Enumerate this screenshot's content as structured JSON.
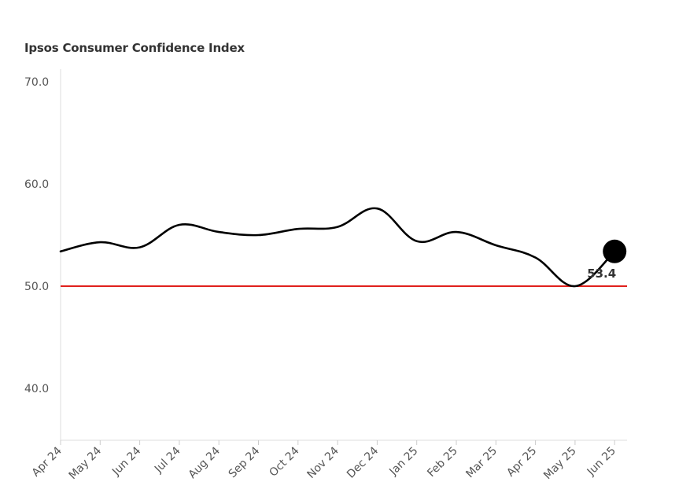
{
  "chart_data": {
    "type": "line",
    "title": "Ipsos Consumer Confidence Index",
    "xlabel": "",
    "ylabel": "",
    "x": [
      "Apr 24",
      "May 24",
      "Jun 24",
      "Jul 24",
      "Aug 24",
      "Sep 24",
      "Oct 24",
      "Nov 24",
      "Dec 24",
      "Jan 25",
      "Feb 25",
      "Mar 25",
      "Apr 25",
      "May 25",
      "Jun 25"
    ],
    "series": [
      {
        "values": [
          53.4,
          54.3,
          53.8,
          56.0,
          55.3,
          55.0,
          55.6,
          55.8,
          57.6,
          54.4,
          55.3,
          54.0,
          52.8,
          50.0,
          53.4
        ]
      }
    ],
    "y_ticks": [
      "70.0",
      "60.0",
      "50.0",
      "40.0"
    ],
    "ylim": [
      35,
      71
    ],
    "reference_line": {
      "value": 50.0,
      "color": "#e0201c"
    },
    "end_label": "53.4",
    "line_color": "#000000",
    "grid": false,
    "legend": "none"
  }
}
